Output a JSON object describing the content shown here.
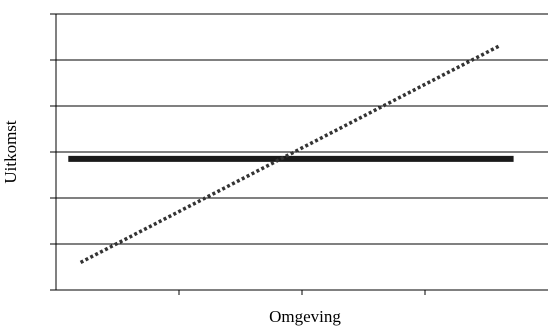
{
  "chart_data": {
    "type": "line",
    "title": "",
    "xlabel": "Omgeving",
    "ylabel": "Uitkomst",
    "x_ticks_count": 4,
    "y_ticks_count": 6,
    "grid": true,
    "grid_axis": "y",
    "legend": null,
    "xlim": [
      0,
      4
    ],
    "ylim": [
      0,
      6
    ],
    "series": [
      {
        "style": "solid",
        "color": "#1a1a1a",
        "x": [
          0.1,
          3.72
        ],
        "y": [
          2.85,
          2.85
        ]
      },
      {
        "style": "dotted",
        "color": "#333333",
        "x": [
          0.2,
          3.6
        ],
        "y": [
          0.6,
          5.3
        ]
      }
    ]
  }
}
